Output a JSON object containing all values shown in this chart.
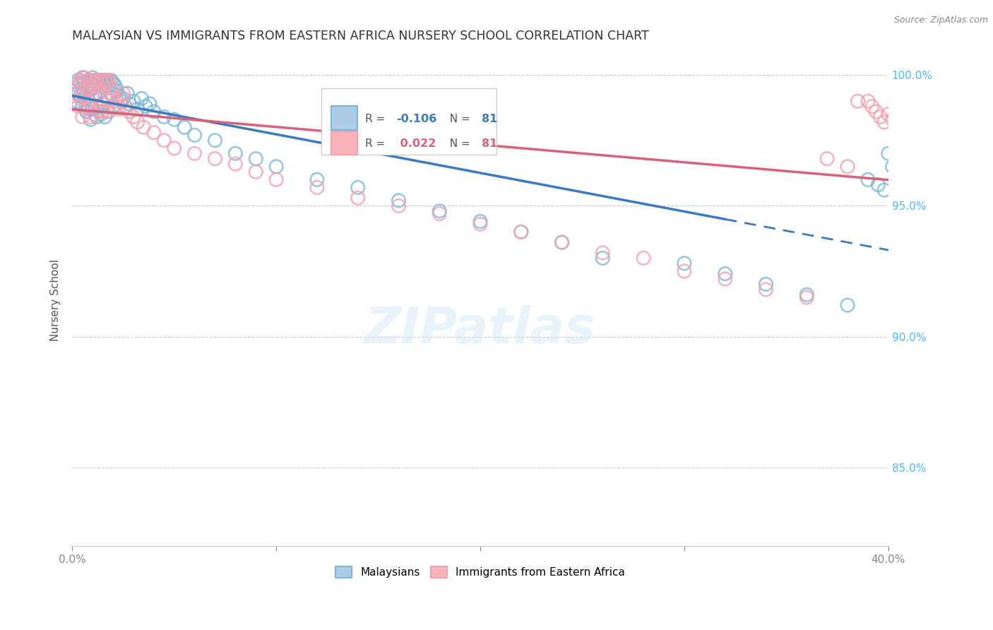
{
  "title": "MALAYSIAN VS IMMIGRANTS FROM EASTERN AFRICA NURSERY SCHOOL CORRELATION CHART",
  "source": "Source: ZipAtlas.com",
  "ylabel": "Nursery School",
  "xlim": [
    0.0,
    0.4
  ],
  "ylim": [
    0.82,
    1.008
  ],
  "yticks": [
    0.85,
    0.9,
    0.95,
    1.0
  ],
  "ytick_labels": [
    "85.0%",
    "90.0%",
    "95.0%",
    "100.0%"
  ],
  "xticks": [
    0.0,
    0.1,
    0.2,
    0.3,
    0.4
  ],
  "xtick_labels": [
    "0.0%",
    "",
    "",
    "",
    "40.0%"
  ],
  "blue_color": "#7ab8d9",
  "pink_color": "#f4a0b0",
  "blue_line_color": "#3a7abf",
  "pink_line_color": "#d9607a",
  "right_axis_color": "#4db8ff",
  "watermark": "ZIPatlas",
  "blue_R": "-0.106",
  "pink_R": "0.022",
  "N": "81",
  "blue_scatter_x": [
    0.002,
    0.003,
    0.003,
    0.004,
    0.004,
    0.005,
    0.005,
    0.005,
    0.006,
    0.006,
    0.007,
    0.007,
    0.008,
    0.008,
    0.008,
    0.009,
    0.009,
    0.01,
    0.01,
    0.01,
    0.011,
    0.011,
    0.012,
    0.012,
    0.013,
    0.013,
    0.014,
    0.014,
    0.015,
    0.015,
    0.016,
    0.016,
    0.017,
    0.017,
    0.018,
    0.018,
    0.019,
    0.019,
    0.02,
    0.02,
    0.021,
    0.022,
    0.023,
    0.024,
    0.025,
    0.026,
    0.027,
    0.028,
    0.03,
    0.032,
    0.034,
    0.036,
    0.038,
    0.04,
    0.045,
    0.05,
    0.055,
    0.06,
    0.07,
    0.08,
    0.09,
    0.1,
    0.12,
    0.14,
    0.16,
    0.18,
    0.2,
    0.22,
    0.24,
    0.26,
    0.3,
    0.32,
    0.34,
    0.36,
    0.38,
    0.39,
    0.395,
    0.398,
    0.4,
    0.402,
    0.405
  ],
  "blue_scatter_y": [
    0.99,
    0.998,
    0.993,
    0.997,
    0.992,
    0.999,
    0.995,
    0.988,
    0.997,
    0.991,
    0.996,
    0.986,
    0.998,
    0.994,
    0.988,
    0.996,
    0.983,
    0.999,
    0.995,
    0.987,
    0.998,
    0.992,
    0.997,
    0.984,
    0.998,
    0.993,
    0.996,
    0.985,
    0.998,
    0.989,
    0.997,
    0.984,
    0.998,
    0.991,
    0.996,
    0.986,
    0.998,
    0.993,
    0.997,
    0.988,
    0.996,
    0.994,
    0.992,
    0.99,
    0.991,
    0.988,
    0.993,
    0.989,
    0.99,
    0.987,
    0.991,
    0.988,
    0.989,
    0.986,
    0.984,
    0.983,
    0.98,
    0.977,
    0.975,
    0.97,
    0.968,
    0.965,
    0.96,
    0.957,
    0.952,
    0.948,
    0.944,
    0.94,
    0.936,
    0.93,
    0.928,
    0.924,
    0.92,
    0.916,
    0.912,
    0.96,
    0.958,
    0.956,
    0.97,
    0.965,
    0.962
  ],
  "pink_scatter_x": [
    0.002,
    0.003,
    0.003,
    0.004,
    0.004,
    0.005,
    0.005,
    0.006,
    0.006,
    0.007,
    0.007,
    0.008,
    0.008,
    0.009,
    0.009,
    0.01,
    0.01,
    0.011,
    0.011,
    0.012,
    0.012,
    0.013,
    0.013,
    0.014,
    0.014,
    0.015,
    0.015,
    0.016,
    0.016,
    0.017,
    0.017,
    0.018,
    0.018,
    0.019,
    0.02,
    0.021,
    0.022,
    0.023,
    0.024,
    0.025,
    0.026,
    0.028,
    0.03,
    0.032,
    0.035,
    0.04,
    0.045,
    0.05,
    0.06,
    0.07,
    0.08,
    0.09,
    0.1,
    0.12,
    0.14,
    0.16,
    0.18,
    0.2,
    0.22,
    0.24,
    0.26,
    0.28,
    0.3,
    0.32,
    0.34,
    0.36,
    0.37,
    0.38,
    0.385,
    0.39,
    0.392,
    0.394,
    0.396,
    0.398,
    0.4,
    0.402,
    0.404,
    0.406,
    0.408,
    0.41,
    0.412
  ],
  "pink_scatter_y": [
    0.993,
    0.996,
    0.988,
    0.998,
    0.991,
    0.997,
    0.984,
    0.999,
    0.992,
    0.996,
    0.987,
    0.998,
    0.99,
    0.996,
    0.984,
    0.998,
    0.991,
    0.997,
    0.985,
    0.998,
    0.992,
    0.996,
    0.986,
    0.998,
    0.991,
    0.997,
    0.986,
    0.998,
    0.992,
    0.997,
    0.986,
    0.998,
    0.99,
    0.995,
    0.992,
    0.988,
    0.99,
    0.987,
    0.991,
    0.993,
    0.988,
    0.986,
    0.984,
    0.982,
    0.98,
    0.978,
    0.975,
    0.972,
    0.97,
    0.968,
    0.966,
    0.963,
    0.96,
    0.957,
    0.953,
    0.95,
    0.947,
    0.943,
    0.94,
    0.936,
    0.932,
    0.93,
    0.925,
    0.922,
    0.918,
    0.915,
    0.968,
    0.965,
    0.99,
    0.99,
    0.988,
    0.986,
    0.984,
    0.982,
    0.985,
    0.983,
    0.981,
    0.979,
    0.977,
    0.975,
    0.973
  ]
}
